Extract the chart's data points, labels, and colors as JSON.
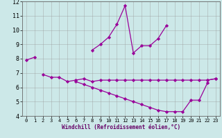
{
  "xlabel": "Windchill (Refroidissement éolien,°C)",
  "x": [
    0,
    1,
    2,
    3,
    4,
    5,
    6,
    7,
    8,
    9,
    10,
    11,
    12,
    13,
    14,
    15,
    16,
    17,
    18,
    19,
    20,
    21,
    22,
    23
  ],
  "line1": [
    7.9,
    8.1,
    null,
    null,
    null,
    null,
    null,
    null,
    8.6,
    9.0,
    9.5,
    10.4,
    11.7,
    8.4,
    8.9,
    8.9,
    9.4,
    10.3,
    null,
    null,
    null,
    null,
    6.5,
    6.6
  ],
  "line2": [
    null,
    null,
    6.9,
    6.7,
    6.7,
    6.4,
    6.5,
    6.6,
    6.4,
    6.5,
    6.5,
    6.5,
    6.5,
    6.5,
    6.5,
    6.5,
    6.5,
    6.5,
    6.5,
    6.5,
    6.5,
    6.5,
    6.5,
    6.6
  ],
  "line3": [
    null,
    null,
    null,
    null,
    null,
    null,
    6.4,
    6.2,
    6.0,
    5.8,
    5.6,
    5.4,
    5.2,
    5.0,
    4.8,
    4.6,
    4.4,
    4.3,
    4.3,
    4.3,
    5.1,
    5.1,
    6.3,
    null
  ],
  "line_color": "#990099",
  "bg_color": "#cce8e8",
  "grid_color": "#999999",
  "ylim": [
    4,
    12
  ],
  "xlim": [
    -0.5,
    23.5
  ],
  "yticks": [
    4,
    5,
    6,
    7,
    8,
    9,
    10,
    11,
    12
  ],
  "xticks": [
    0,
    1,
    2,
    3,
    4,
    5,
    6,
    7,
    8,
    9,
    10,
    11,
    12,
    13,
    14,
    15,
    16,
    17,
    18,
    19,
    20,
    21,
    22,
    23
  ]
}
